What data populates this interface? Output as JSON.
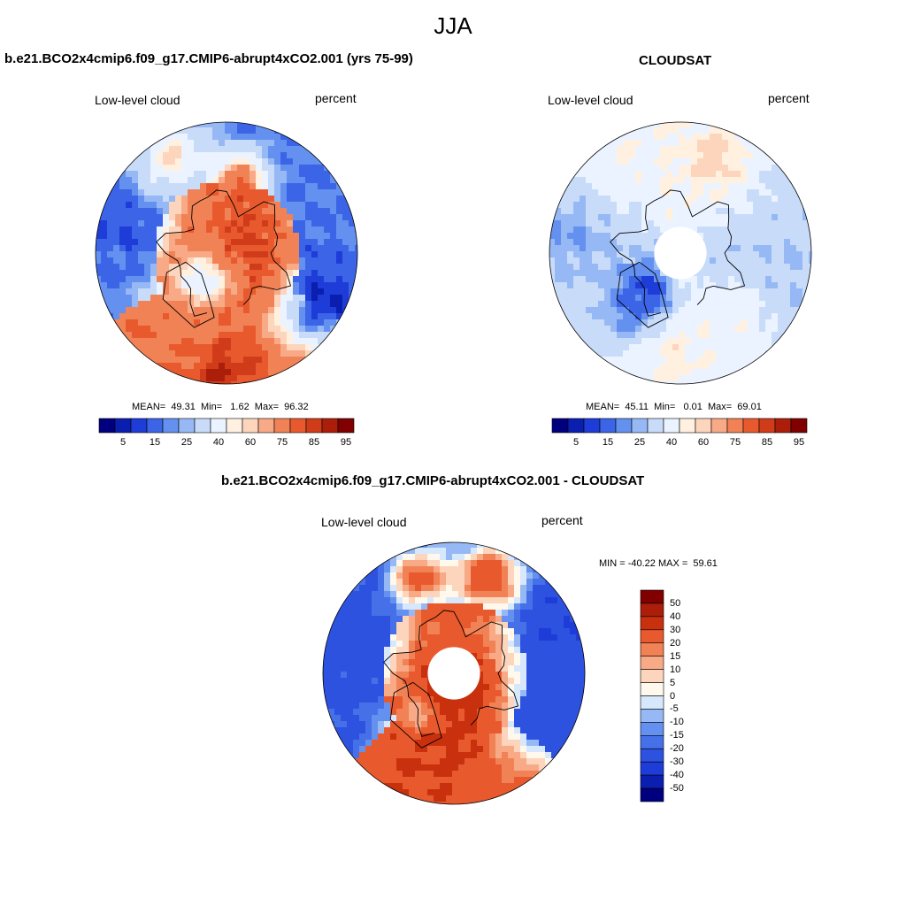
{
  "figure": {
    "title": "JJA"
  },
  "panels": [
    {
      "title": "b.e21.BCO2x4cmip6.f09_g17.CMIP6-abrupt4xCO2.001 (yrs 75-99)",
      "left_label": "Low-level cloud",
      "right_label": "percent",
      "stats": "MEAN=  49.31  Min=   1.62  Max=  96.32",
      "map": "polar stereographic, North Pole, low-level cloud fraction",
      "pattern": {
        "arctic_ocean_high": true,
        "pole_hole": false,
        "blobs": [
          {
            "lon": 30,
            "colat": 5,
            "r": 14,
            "v": 92
          },
          {
            "lon": 0,
            "colat": 10,
            "r": 22,
            "v": 80
          },
          {
            "lon": 170,
            "colat": 25,
            "r": 10,
            "v": 78
          },
          {
            "lon": -40,
            "colat": 15,
            "r": 10,
            "v": 32
          },
          {
            "lon": -30,
            "colat": 30,
            "r": 14,
            "v": 72
          },
          {
            "lon": 120,
            "colat": 40,
            "r": 12,
            "v": 20
          },
          {
            "lon": 60,
            "colat": 38,
            "r": 14,
            "v": 10
          },
          {
            "lon": -110,
            "colat": 35,
            "r": 14,
            "v": 15
          },
          {
            "lon": -150,
            "colat": 38,
            "r": 12,
            "v": 55
          },
          {
            "lon": 0,
            "colat": 42,
            "r": 10,
            "v": 85
          }
        ]
      }
    },
    {
      "title": "CLOUDSAT",
      "left_label": "Low-level cloud",
      "right_label": "percent",
      "stats": "MEAN=  45.11  Min=   0.01  Max=  69.01",
      "map": "polar stereographic, North Pole, low-level cloud fraction (observed)",
      "pattern": {
        "arctic_ocean_high": false,
        "pole_hole": true,
        "blobs": [
          {
            "lon": -40,
            "colat": 18,
            "r": 8,
            "v": 2
          },
          {
            "lon": -40,
            "colat": 25,
            "r": 12,
            "v": 18
          },
          {
            "lon": 160,
            "colat": 35,
            "r": 12,
            "v": 58
          },
          {
            "lon": 0,
            "colat": 35,
            "r": 10,
            "v": 52
          },
          {
            "lon": -150,
            "colat": 40,
            "r": 14,
            "v": 50
          },
          {
            "lon": 80,
            "colat": 40,
            "r": 12,
            "v": 30
          },
          {
            "lon": -100,
            "colat": 38,
            "r": 12,
            "v": 25
          },
          {
            "lon": 40,
            "colat": 30,
            "r": 10,
            "v": 48
          }
        ]
      }
    },
    {
      "title": "b.e21.BCO2x4cmip6.f09_g17.CMIP6-abrupt4xCO2.001 - CLOUDSAT",
      "left_label": "Low-level cloud",
      "right_label": "percent",
      "stats": "MIN = -40.22 MAX =  59.61",
      "map": "polar stereographic, North Pole, low-level cloud difference",
      "pattern": {
        "pole_hole": true,
        "blobs": [
          {
            "lon": 20,
            "colat": 10,
            "r": 14,
            "v": 55
          },
          {
            "lon": -10,
            "colat": 20,
            "r": 16,
            "v": 40
          },
          {
            "lon": -40,
            "colat": 20,
            "r": 6,
            "v": 5
          },
          {
            "lon": -20,
            "colat": 33,
            "r": 14,
            "v": 30
          },
          {
            "lon": 120,
            "colat": 38,
            "r": 18,
            "v": -30
          },
          {
            "lon": 70,
            "colat": 38,
            "r": 18,
            "v": -25
          },
          {
            "lon": -110,
            "colat": 36,
            "r": 18,
            "v": -25
          },
          {
            "lon": -160,
            "colat": 35,
            "r": 10,
            "v": 25
          },
          {
            "lon": 160,
            "colat": 35,
            "r": 12,
            "v": 30
          }
        ]
      }
    }
  ],
  "colorbars": {
    "abs": {
      "colors": [
        "#00007f",
        "#0a1fb0",
        "#1e3cd8",
        "#3c64e6",
        "#6490f0",
        "#96b9f5",
        "#c8dcfa",
        "#eaf3ff",
        "#fff0e0",
        "#fcd5bc",
        "#f8aa87",
        "#f08256",
        "#e85a2e",
        "#d03c1a",
        "#aa1e0a",
        "#800000"
      ],
      "labels": [
        "5",
        "15",
        "25",
        "40",
        "60",
        "75",
        "85",
        "95"
      ]
    },
    "diff": {
      "colors": [
        "#00007f",
        "#0a1fb0",
        "#1e3cd8",
        "#2d52e0",
        "#4670e8",
        "#6490f0",
        "#96b9f5",
        "#d8e8fc",
        "#fff8ec",
        "#fcd5bc",
        "#f8aa87",
        "#f08256",
        "#e85a2e",
        "#c8300e",
        "#aa1e0a",
        "#800000"
      ],
      "labels": [
        "50",
        "40",
        "30",
        "20",
        "15",
        "10",
        "5",
        "0",
        "-5",
        "-10",
        "-15",
        "-20",
        "-30",
        "-40",
        "-50"
      ]
    }
  }
}
